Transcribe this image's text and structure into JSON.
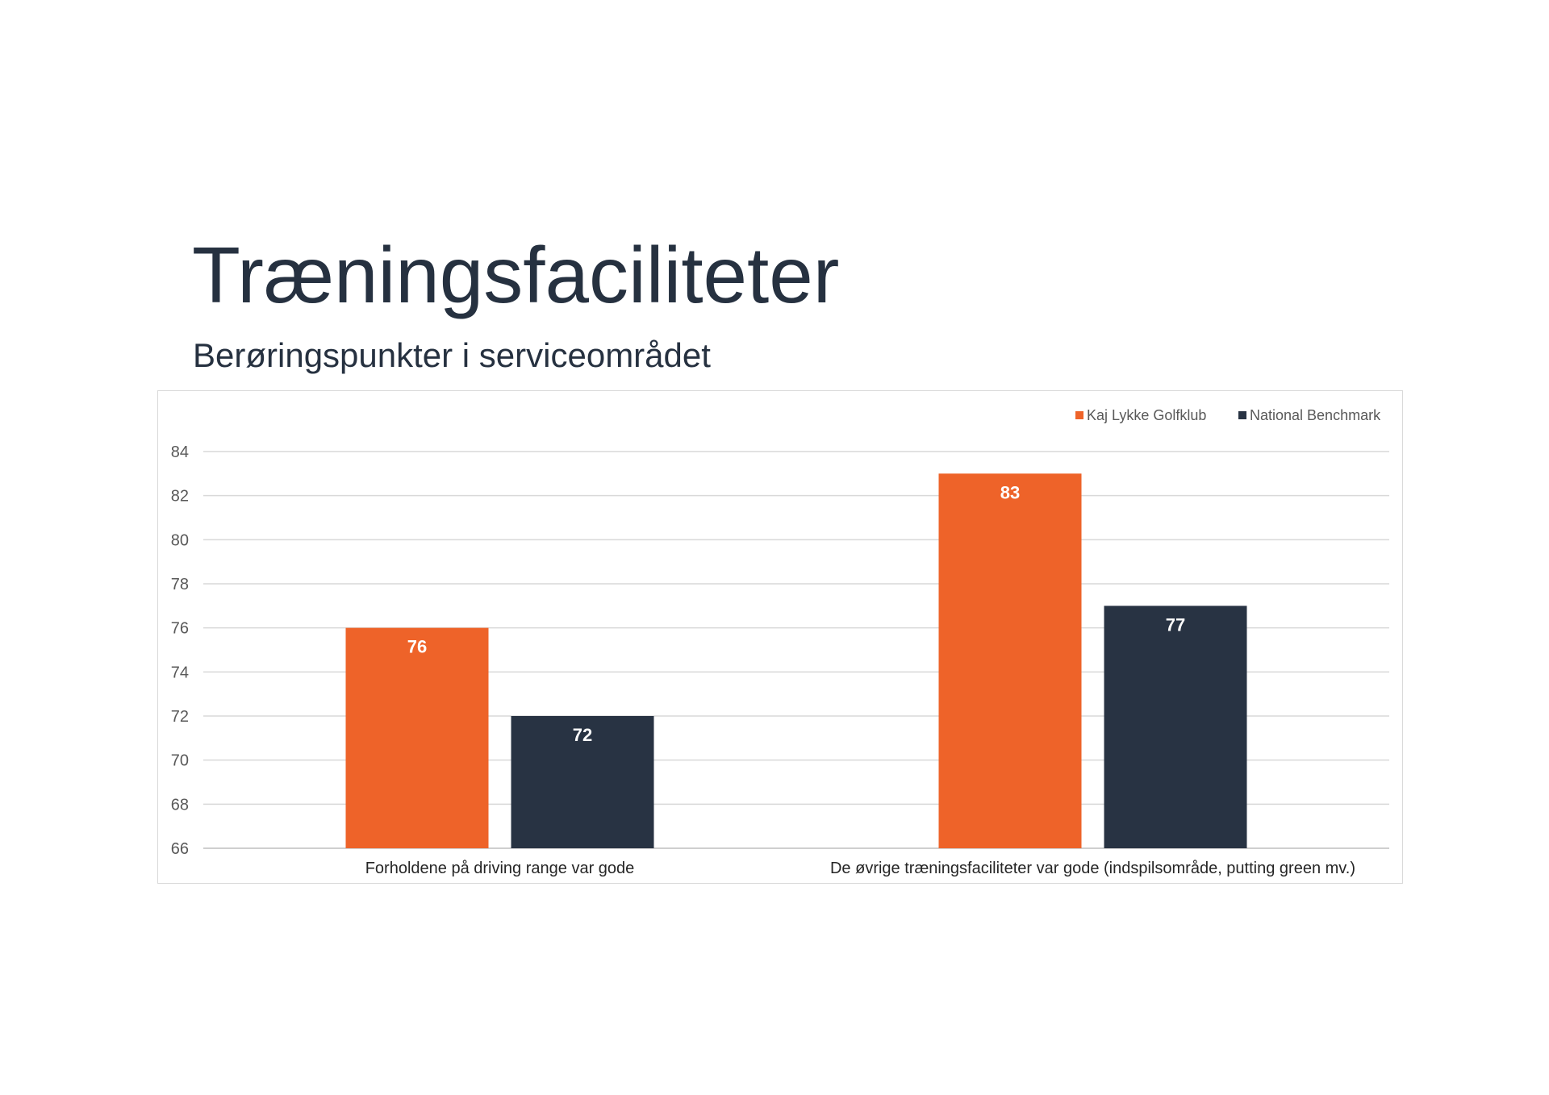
{
  "page": {
    "title": "Træningsfaciliteter",
    "subtitle": "Berøringspunkter i serviceområdet"
  },
  "chart_data": {
    "type": "bar",
    "categories": [
      "Forholdene på driving range var gode",
      "De øvrige træningsfaciliteter var gode (indspilsområde, putting green mv.)"
    ],
    "series": [
      {
        "name": "Kaj Lykke Golfklub",
        "values": [
          76,
          83
        ],
        "color": "#EE6329"
      },
      {
        "name": "National Benchmark",
        "values": [
          72,
          77
        ],
        "color": "#283343"
      }
    ],
    "ylim": [
      66,
      84
    ],
    "yticks": [
      66,
      68,
      70,
      72,
      74,
      76,
      78,
      80,
      82,
      84
    ],
    "grid": true,
    "legend": "top-right",
    "data_labels": true
  }
}
